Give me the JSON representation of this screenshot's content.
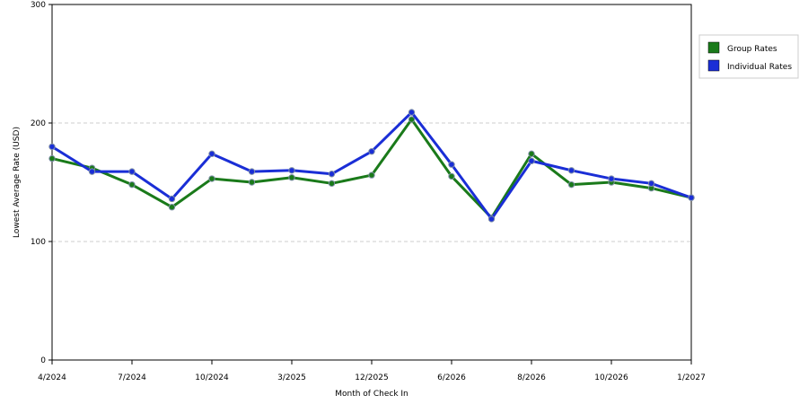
{
  "chart_data": {
    "type": "line",
    "xlabel": "Month of Check In",
    "ylabel": "Lowest Average Rate (USD)",
    "ylim": [
      0,
      300
    ],
    "yticks": [
      "0",
      "100",
      "200",
      "300"
    ],
    "grid": "horizontal-dashed",
    "legend_position": "right",
    "x_tick_labels": [
      "4/2024",
      "7/2024",
      "10/2024",
      "3/2025",
      "12/2025",
      "6/2026",
      "8/2026",
      "10/2026",
      "1/2027"
    ],
    "x_tick_positions": [
      0,
      2,
      4,
      6,
      8,
      10,
      12,
      14,
      16
    ],
    "series": [
      {
        "name": "Group Rates",
        "color": "#1a7a1a",
        "values": [
          170,
          162,
          148,
          129,
          153,
          150,
          154,
          149,
          156,
          203,
          155,
          120,
          174,
          148,
          150,
          145,
          137
        ]
      },
      {
        "name": "Individual Rates",
        "color": "#1a2ed6",
        "values": [
          180,
          159,
          159,
          136,
          174,
          159,
          160,
          157,
          176,
          209,
          165,
          119,
          168,
          160,
          153,
          149,
          137
        ]
      }
    ]
  }
}
